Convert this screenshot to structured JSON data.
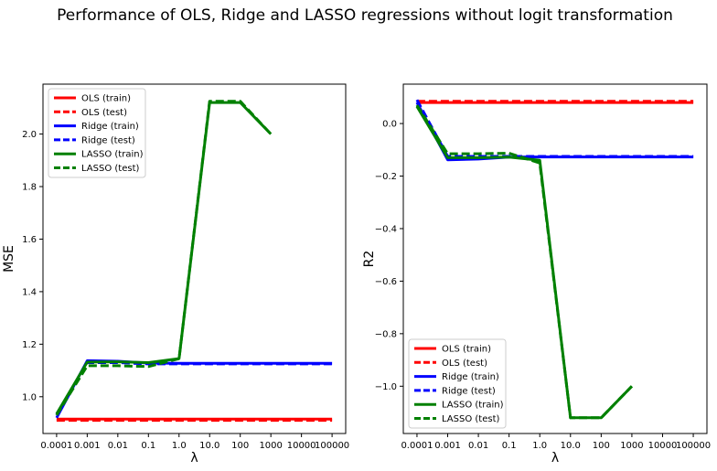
{
  "figure": {
    "title": "Performance of OLS, Ridge and LASSO regressions without logit transformation"
  },
  "legend_labels": [
    "OLS (train)",
    "OLS (test)",
    "Ridge (train)",
    "Ridge (test)",
    "LASSO (train)",
    "LASSO (test)"
  ],
  "chart_data": [
    {
      "type": "line",
      "xlabel": "λ",
      "ylabel": "MSE",
      "categories": [
        "0.0001",
        "0.001",
        "0.01",
        "0.1",
        "1.0",
        "10.0",
        "100",
        "1000",
        "10000",
        "100000"
      ],
      "ylim": [
        0.86,
        2.19
      ],
      "yticks": [
        1.0,
        1.2,
        1.4,
        1.6,
        1.8,
        2.0
      ],
      "ytick_labels": [
        "1.0",
        "1.2",
        "1.4",
        "1.6",
        "1.8",
        "2.0"
      ],
      "legend_position": "upper-left",
      "grid": false,
      "series": [
        {
          "name": "OLS (train)",
          "color": "#ff0000",
          "dashed": false,
          "values": [
            0.915,
            0.915,
            0.915,
            0.915,
            0.915,
            0.915,
            0.915,
            0.915,
            0.915,
            0.915
          ]
        },
        {
          "name": "OLS (test)",
          "color": "#ff0000",
          "dashed": true,
          "values": [
            0.91,
            0.91,
            0.91,
            0.91,
            0.91,
            0.91,
            0.91,
            0.91,
            0.91,
            0.91
          ]
        },
        {
          "name": "Ridge (train)",
          "color": "#0000ff",
          "dashed": false,
          "values": [
            0.92,
            1.137,
            1.135,
            1.128,
            1.127,
            1.127,
            1.127,
            1.127,
            1.127,
            1.127
          ]
        },
        {
          "name": "Ridge (test)",
          "color": "#0000ff",
          "dashed": true,
          "values": [
            0.93,
            1.13,
            1.13,
            1.125,
            1.125,
            1.125,
            1.125,
            1.125,
            1.125,
            1.125
          ]
        },
        {
          "name": "LASSO (train)",
          "color": "#008000",
          "dashed": false,
          "values": [
            0.935,
            1.132,
            1.133,
            1.13,
            1.145,
            2.12,
            2.12,
            2.0,
            null,
            null
          ]
        },
        {
          "name": "LASSO (test)",
          "color": "#008000",
          "dashed": true,
          "values": [
            0.93,
            1.118,
            1.118,
            1.115,
            1.145,
            2.125,
            2.125,
            2.0,
            null,
            null
          ]
        }
      ]
    },
    {
      "type": "line",
      "xlabel": "λ",
      "ylabel": "R2",
      "categories": [
        "0.0001",
        "0.001",
        "0.01",
        "0.1",
        "1.0",
        "10.0",
        "100",
        "1000",
        "10000",
        "100000"
      ],
      "ylim": [
        -1.18,
        0.15
      ],
      "yticks": [
        0.0,
        -0.2,
        -0.4,
        -0.6,
        -0.8,
        -1.0
      ],
      "ytick_labels": [
        "0.0",
        "−0.2",
        "−0.4",
        "−0.6",
        "−0.8",
        "−1.0"
      ],
      "legend_position": "lower-left",
      "grid": false,
      "series": [
        {
          "name": "OLS (train)",
          "color": "#ff0000",
          "dashed": false,
          "values": [
            0.08,
            0.08,
            0.08,
            0.08,
            0.08,
            0.08,
            0.08,
            0.08,
            0.08,
            0.08
          ]
        },
        {
          "name": "OLS (test)",
          "color": "#ff0000",
          "dashed": true,
          "values": [
            0.085,
            0.085,
            0.085,
            0.085,
            0.085,
            0.085,
            0.085,
            0.085,
            0.085,
            0.085
          ]
        },
        {
          "name": "Ridge (train)",
          "color": "#0000ff",
          "dashed": false,
          "values": [
            0.08,
            -0.138,
            -0.135,
            -0.128,
            -0.127,
            -0.127,
            -0.127,
            -0.127,
            -0.127,
            -0.127
          ]
        },
        {
          "name": "Ridge (test)",
          "color": "#0000ff",
          "dashed": true,
          "values": [
            0.09,
            -0.125,
            -0.125,
            -0.125,
            -0.125,
            -0.125,
            -0.125,
            -0.125,
            -0.125,
            -0.125
          ]
        },
        {
          "name": "LASSO (train)",
          "color": "#008000",
          "dashed": false,
          "values": [
            0.065,
            -0.13,
            -0.13,
            -0.128,
            -0.14,
            -1.12,
            -1.12,
            -1.0,
            null,
            null
          ]
        },
        {
          "name": "LASSO (test)",
          "color": "#008000",
          "dashed": true,
          "values": [
            0.07,
            -0.115,
            -0.115,
            -0.113,
            -0.15,
            -1.12,
            -1.12,
            -1.0,
            null,
            null
          ]
        }
      ]
    }
  ]
}
